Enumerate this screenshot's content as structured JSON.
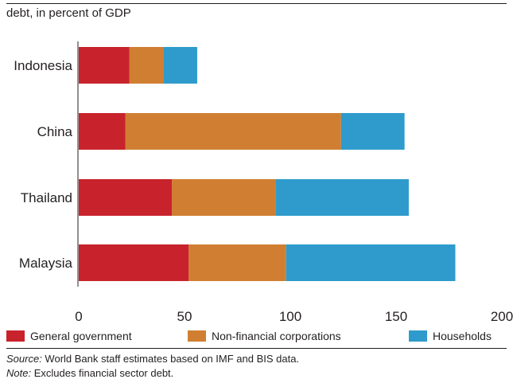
{
  "subtitle": "debt, in percent of GDP",
  "colors": {
    "general_government": "#c8232c",
    "non_financial_corporations": "#d07f32",
    "households": "#2e9bcc"
  },
  "chart_data": {
    "type": "bar",
    "orientation": "horizontal",
    "stacked": true,
    "categories": [
      "Indonesia",
      "China",
      "Thailand",
      "Malaysia"
    ],
    "series": [
      {
        "name": "General government",
        "values": [
          24,
          22,
          44,
          52
        ]
      },
      {
        "name": "Non-financial corporations",
        "values": [
          16,
          102,
          49,
          46
        ]
      },
      {
        "name": "Households",
        "values": [
          16,
          30,
          63,
          80
        ]
      }
    ],
    "xlim": [
      0,
      200
    ],
    "xticks": [
      0,
      50,
      100,
      150,
      200
    ],
    "legend_position": "bottom",
    "grid": false
  },
  "legend": {
    "items": [
      {
        "label": "General government",
        "color": "#c8232c"
      },
      {
        "label": "Non-financial corporations",
        "color": "#d07f32"
      },
      {
        "label": "Households",
        "color": "#2e9bcc"
      }
    ]
  },
  "notes": {
    "source_label": "Source:",
    "source_text": " World Bank staff estimates based on IMF and BIS data.",
    "note_label": "Note:",
    "note_text": " Excludes financial sector debt."
  }
}
